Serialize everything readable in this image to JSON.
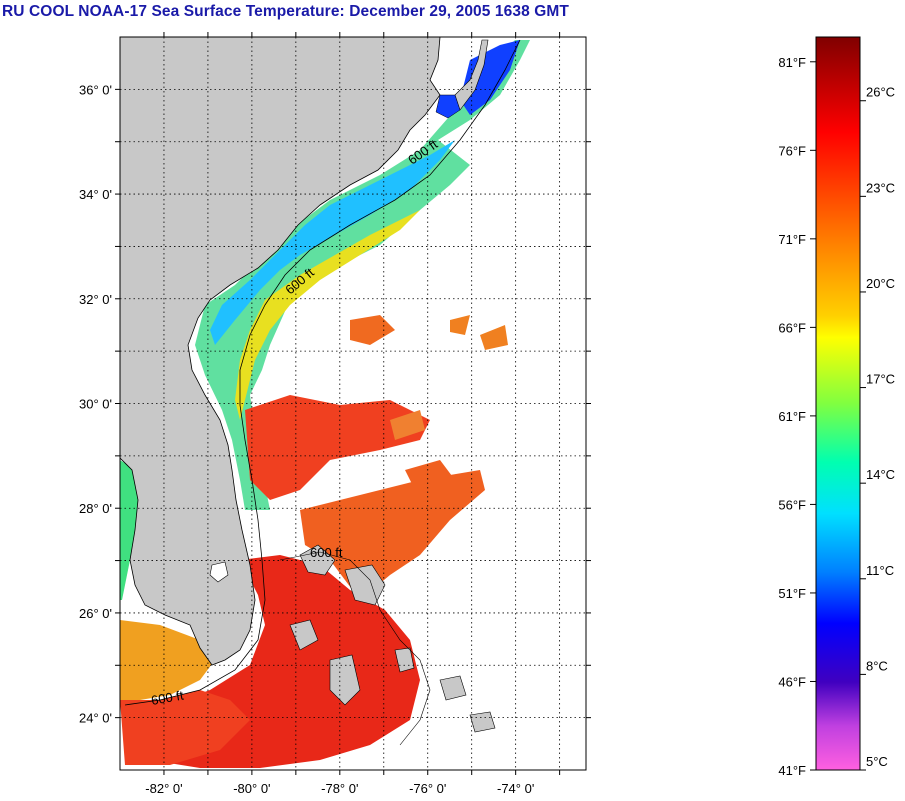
{
  "title": "RU COOL  NOAA-17  Sea Surface Temperature:  December 29, 2005 1638 GMT",
  "map": {
    "lon_range": [
      -83,
      -72.4
    ],
    "lat_range": [
      23,
      37
    ],
    "lat_labels": [
      {
        "value": 36,
        "text": "36° 0'"
      },
      {
        "value": 34,
        "text": "34° 0'"
      },
      {
        "value": 32,
        "text": "32° 0'"
      },
      {
        "value": 30,
        "text": "30° 0'"
      },
      {
        "value": 28,
        "text": "28° 0'"
      },
      {
        "value": 26,
        "text": "26° 0'"
      },
      {
        "value": 24,
        "text": "24° 0'"
      }
    ],
    "lon_labels": [
      {
        "value": -82,
        "text": "-82° 0'"
      },
      {
        "value": -80,
        "text": "-80° 0'"
      },
      {
        "value": -78,
        "text": "-78° 0'"
      },
      {
        "value": -76,
        "text": "-76° 0'"
      },
      {
        "value": -74,
        "text": "-74° 0'"
      }
    ],
    "contour_label": "600 ft",
    "land_color": "#c8c8c8",
    "grid": true
  },
  "colorbar": {
    "range_c": [
      5,
      28
    ],
    "fahrenheit_labels": [
      "81°F",
      "76°F",
      "71°F",
      "66°F",
      "61°F",
      "56°F",
      "51°F",
      "46°F",
      "41°F"
    ],
    "celsius_labels": [
      "26°C",
      "23°C",
      "20°C",
      "17°C",
      "14°C",
      "11°C",
      "8°C",
      "5°C"
    ],
    "fahrenheit_values": [
      81,
      76,
      71,
      66,
      61,
      56,
      51,
      46,
      41
    ],
    "celsius_values": [
      26,
      23,
      20,
      17,
      14,
      11,
      8,
      5
    ]
  }
}
